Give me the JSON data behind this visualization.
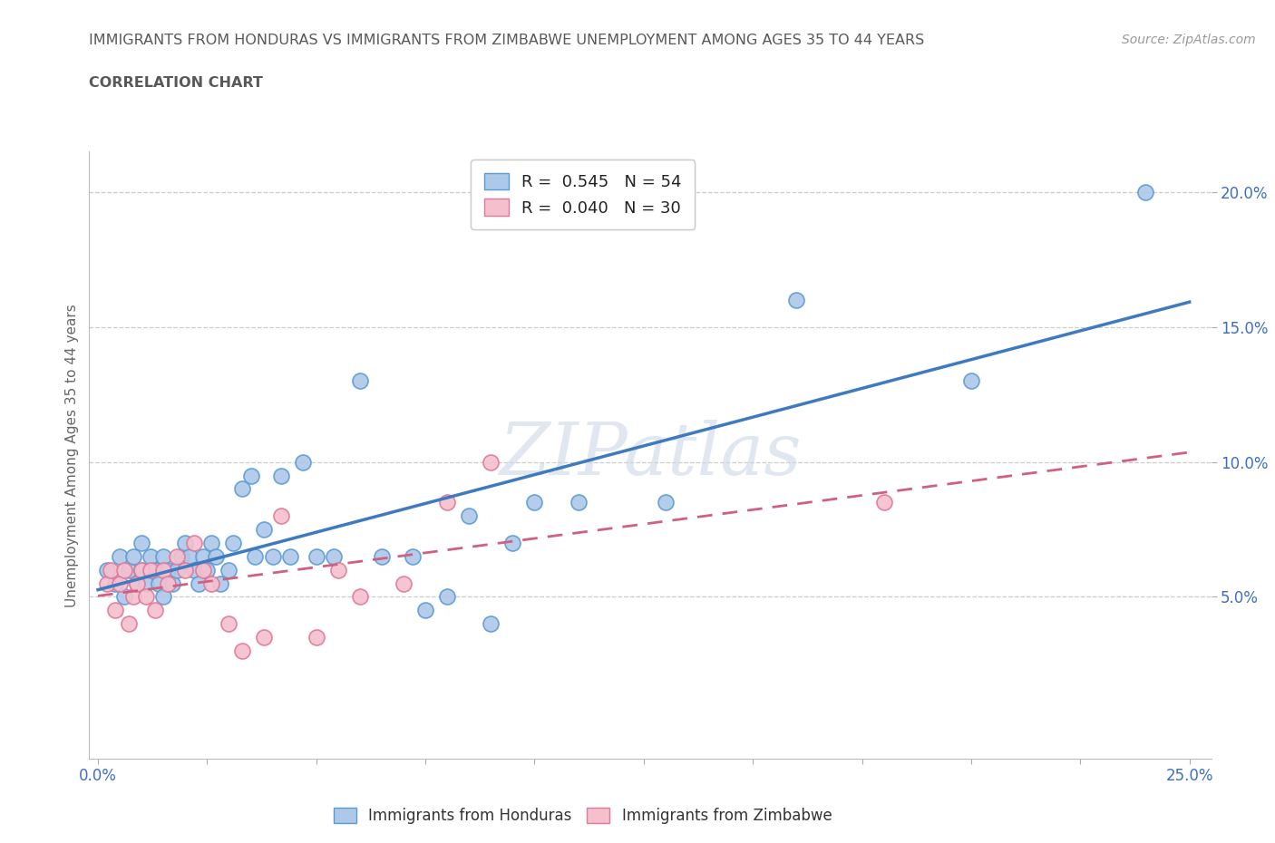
{
  "title_line1": "IMMIGRANTS FROM HONDURAS VS IMMIGRANTS FROM ZIMBABWE UNEMPLOYMENT AMONG AGES 35 TO 44 YEARS",
  "title_line2": "CORRELATION CHART",
  "source_text": "Source: ZipAtlas.com",
  "ylabel": "Unemployment Among Ages 35 to 44 years",
  "xlim": [
    -0.002,
    0.255
  ],
  "ylim": [
    -0.01,
    0.215
  ],
  "ytick_positions": [
    0.05,
    0.1,
    0.15,
    0.2
  ],
  "ytick_labels": [
    "5.0%",
    "10.0%",
    "15.0%",
    "20.0%"
  ],
  "xtick_positions": [
    0.0,
    0.025,
    0.05,
    0.075,
    0.1,
    0.125,
    0.15,
    0.175,
    0.2,
    0.225,
    0.25
  ],
  "honduras_R": 0.545,
  "honduras_N": 54,
  "zimbabwe_R": 0.04,
  "zimbabwe_N": 30,
  "honduras_color": "#adc8e8",
  "honduras_edge_color": "#5b9bd5",
  "honduras_line_color": "#3d7abf",
  "zimbabwe_color": "#f5bfce",
  "zimbabwe_edge_color": "#e07898",
  "zimbabwe_line_color": "#d06080",
  "watermark_color": "#cdd8e8",
  "grid_color": "#cccccc",
  "title_color": "#595959",
  "tick_label_color": "#3d6ec4",
  "legend_r_color": "#3d6ec4",
  "honduras_scatter_x": [
    0.002,
    0.004,
    0.005,
    0.006,
    0.007,
    0.008,
    0.009,
    0.01,
    0.01,
    0.011,
    0.012,
    0.013,
    0.014,
    0.015,
    0.015,
    0.016,
    0.017,
    0.018,
    0.019,
    0.02,
    0.021,
    0.022,
    0.023,
    0.024,
    0.025,
    0.026,
    0.027,
    0.028,
    0.03,
    0.031,
    0.033,
    0.035,
    0.036,
    0.038,
    0.04,
    0.042,
    0.044,
    0.047,
    0.05,
    0.054,
    0.06,
    0.065,
    0.072,
    0.075,
    0.08,
    0.085,
    0.09,
    0.095,
    0.1,
    0.11,
    0.13,
    0.16,
    0.2,
    0.24
  ],
  "honduras_scatter_y": [
    0.06,
    0.055,
    0.065,
    0.05,
    0.06,
    0.065,
    0.055,
    0.06,
    0.07,
    0.055,
    0.065,
    0.06,
    0.055,
    0.065,
    0.05,
    0.06,
    0.055,
    0.06,
    0.065,
    0.07,
    0.065,
    0.06,
    0.055,
    0.065,
    0.06,
    0.07,
    0.065,
    0.055,
    0.06,
    0.07,
    0.09,
    0.095,
    0.065,
    0.075,
    0.065,
    0.095,
    0.065,
    0.1,
    0.065,
    0.065,
    0.13,
    0.065,
    0.065,
    0.045,
    0.05,
    0.08,
    0.04,
    0.07,
    0.085,
    0.085,
    0.085,
    0.16,
    0.13,
    0.2
  ],
  "zimbabwe_scatter_x": [
    0.002,
    0.003,
    0.004,
    0.005,
    0.006,
    0.007,
    0.008,
    0.009,
    0.01,
    0.011,
    0.012,
    0.013,
    0.015,
    0.016,
    0.018,
    0.02,
    0.022,
    0.024,
    0.026,
    0.03,
    0.033,
    0.038,
    0.042,
    0.05,
    0.055,
    0.06,
    0.07,
    0.08,
    0.09,
    0.18
  ],
  "zimbabwe_scatter_y": [
    0.055,
    0.06,
    0.045,
    0.055,
    0.06,
    0.04,
    0.05,
    0.055,
    0.06,
    0.05,
    0.06,
    0.045,
    0.06,
    0.055,
    0.065,
    0.06,
    0.07,
    0.06,
    0.055,
    0.04,
    0.03,
    0.035,
    0.08,
    0.035,
    0.06,
    0.05,
    0.055,
    0.085,
    0.1,
    0.085
  ]
}
